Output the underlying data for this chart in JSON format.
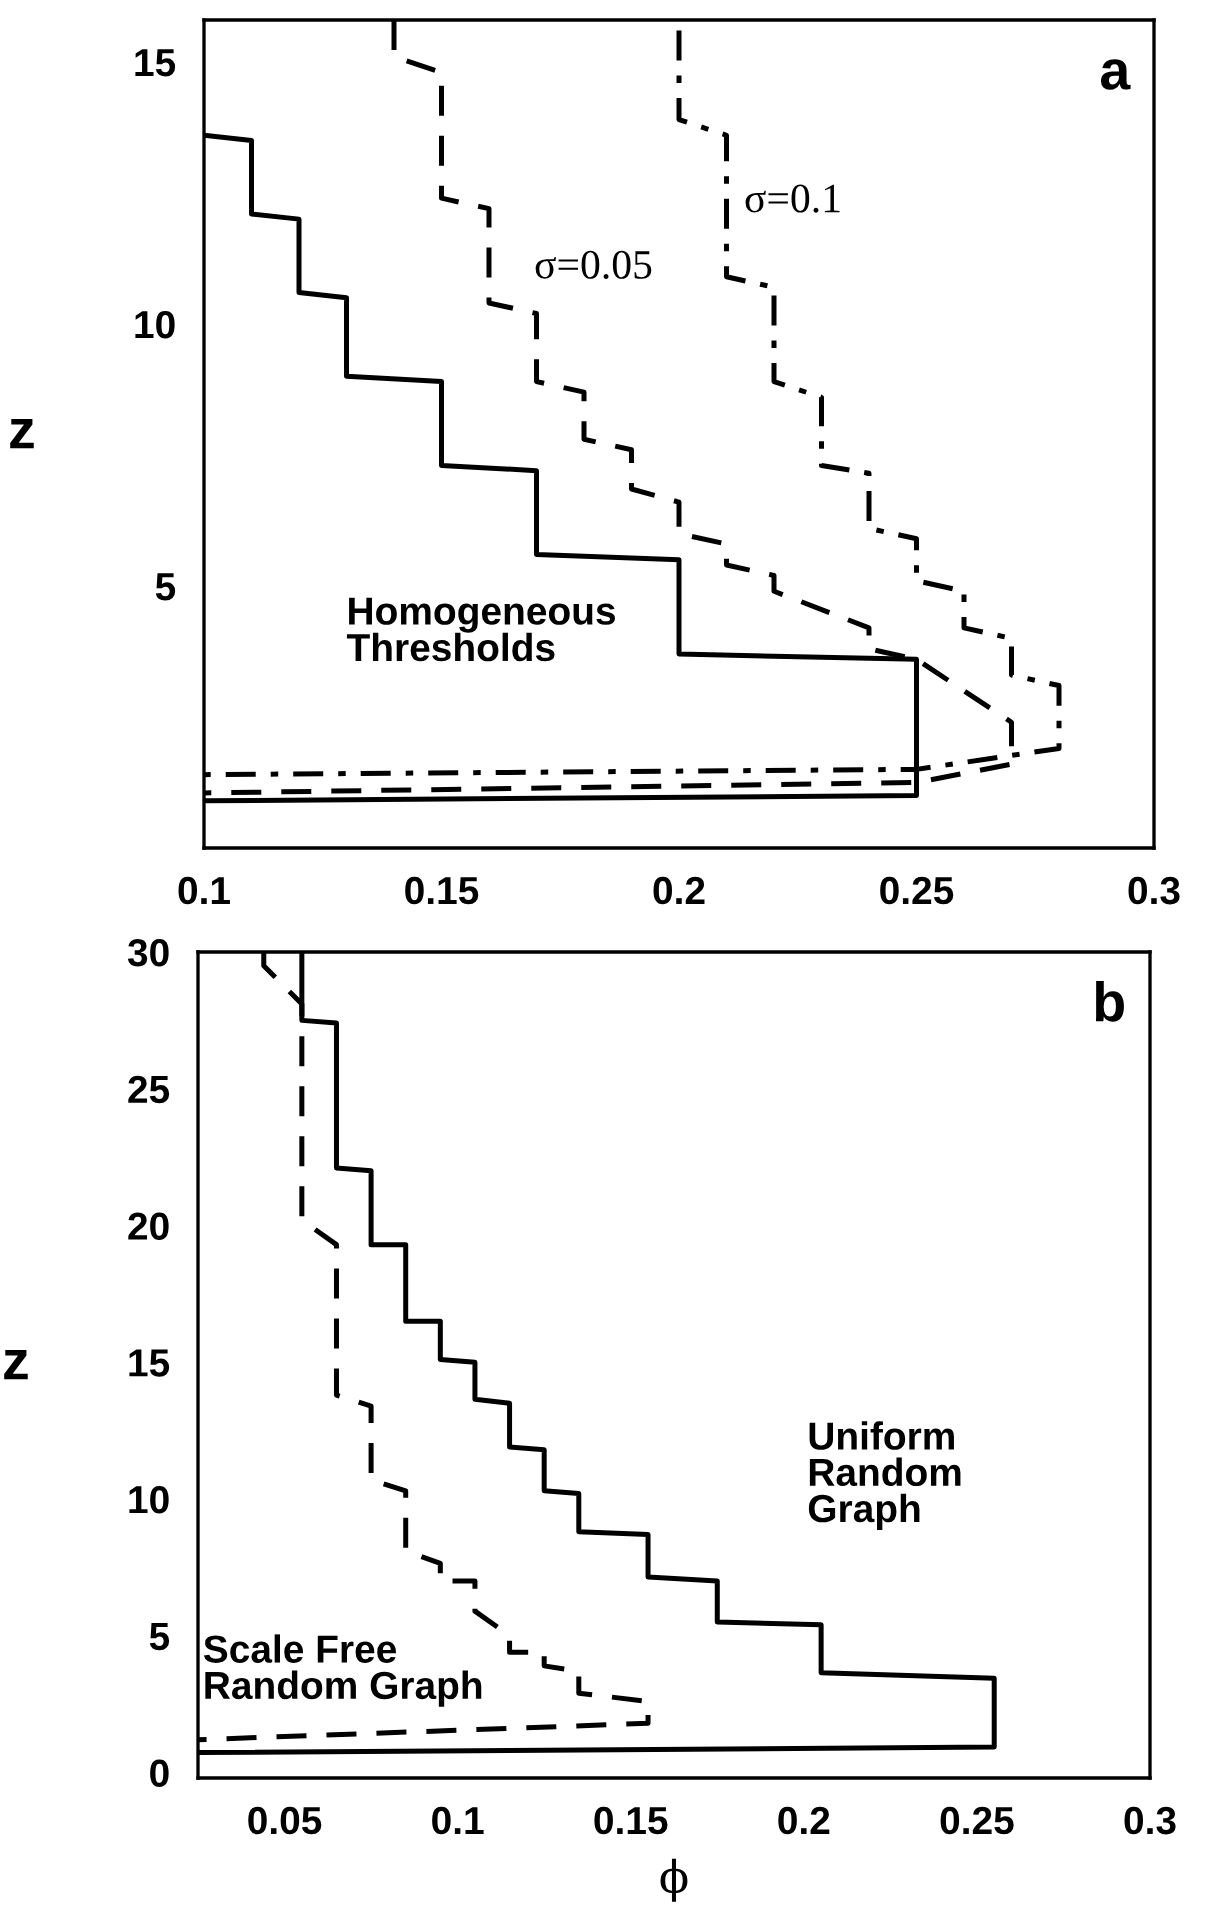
{
  "chart_data": [
    {
      "type": "line",
      "ylabel": "z",
      "annotations": [
        "a"
      ],
      "xlim": [
        0.1,
        0.3
      ],
      "ylim": [
        0,
        15.8
      ],
      "xticks": [
        0.1,
        0.15,
        0.2,
        0.25,
        0.3
      ],
      "yticks": [
        5,
        10,
        15
      ],
      "grid": false,
      "legend": false,
      "marker": "none",
      "series": [
        {
          "name": "Homogeneous Thresholds",
          "color": "#000000",
          "line_style": "solid",
          "x": [
            0.1,
            0.11,
            0.11,
            0.12,
            0.12,
            0.13,
            0.13,
            0.15,
            0.15,
            0.17,
            0.17,
            0.2,
            0.2,
            0.25,
            0.25,
            0.1
          ],
          "values": [
            13.6,
            13.5,
            12.1,
            12.0,
            10.6,
            10.5,
            9.0,
            8.9,
            7.3,
            7.2,
            5.6,
            5.5,
            3.7,
            3.6,
            1.0,
            0.9
          ]
        },
        {
          "name": "σ=0.05",
          "color": "#000000",
          "line_style": "dashed",
          "x": [
            0.14,
            0.14,
            0.15,
            0.15,
            0.16,
            0.16,
            0.17,
            0.17,
            0.18,
            0.18,
            0.19,
            0.19,
            0.2,
            0.2,
            0.21,
            0.21,
            0.22,
            0.22,
            0.24,
            0.24,
            0.25,
            0.27,
            0.27,
            0.25,
            0.1
          ],
          "values": [
            15.8,
            15.1,
            14.8,
            12.4,
            12.2,
            10.4,
            10.2,
            8.9,
            8.7,
            7.8,
            7.6,
            6.85,
            6.6,
            6.0,
            5.8,
            5.4,
            5.2,
            4.9,
            4.2,
            3.8,
            3.6,
            2.4,
            1.6,
            1.25,
            1.05
          ]
        },
        {
          "name": "σ=0.1",
          "color": "#000000",
          "line_style": "dashdot",
          "x": [
            0.2,
            0.2,
            0.21,
            0.21,
            0.22,
            0.22,
            0.23,
            0.23,
            0.24,
            0.24,
            0.25,
            0.25,
            0.26,
            0.26,
            0.27,
            0.27,
            0.28,
            0.28,
            0.25,
            0.1
          ],
          "values": [
            15.6,
            13.9,
            13.6,
            10.9,
            10.7,
            8.9,
            8.6,
            7.3,
            7.15,
            6.1,
            5.9,
            5.1,
            4.9,
            4.2,
            4.0,
            3.3,
            3.1,
            1.9,
            1.5,
            1.4
          ]
        }
      ]
    },
    {
      "type": "line",
      "xlabel": "ϕ",
      "ylabel": "z",
      "annotations": [
        "b"
      ],
      "xlim": [
        0.025,
        0.3
      ],
      "ylim": [
        -0.2,
        30
      ],
      "xticks": [
        0.05,
        0.1,
        0.15,
        0.2,
        0.25,
        0.3
      ],
      "yticks": [
        0,
        5,
        10,
        15,
        20,
        25,
        30
      ],
      "grid": false,
      "legend": false,
      "marker": "none",
      "series": [
        {
          "name": "Uniform Random Graph",
          "color": "#000000",
          "line_style": "solid",
          "x": [
            0.055,
            0.055,
            0.065,
            0.065,
            0.075,
            0.075,
            0.085,
            0.085,
            0.095,
            0.095,
            0.105,
            0.105,
            0.115,
            0.115,
            0.125,
            0.125,
            0.135,
            0.135,
            0.155,
            0.155,
            0.175,
            0.175,
            0.205,
            0.205,
            0.255,
            0.255,
            0.025
          ],
          "values": [
            30,
            27.5,
            27.4,
            22.1,
            22.0,
            19.3,
            19.3,
            16.5,
            16.5,
            15.1,
            15.0,
            13.65,
            13.5,
            11.9,
            11.8,
            10.3,
            10.2,
            8.8,
            8.7,
            7.15,
            7.0,
            5.5,
            5.4,
            3.65,
            3.45,
            0.93,
            0.73
          ]
        },
        {
          "name": "Scale Free Random Graph",
          "color": "#000000",
          "line_style": "dashed",
          "x": [
            0.044,
            0.044,
            0.055,
            0.055,
            0.065,
            0.065,
            0.075,
            0.075,
            0.085,
            0.085,
            0.095,
            0.095,
            0.105,
            0.105,
            0.115,
            0.115,
            0.125,
            0.125,
            0.135,
            0.135,
            0.155,
            0.155,
            0.025
          ],
          "values": [
            30,
            29.5,
            28.1,
            20.2,
            19.3,
            13.8,
            13.4,
            10.7,
            10.3,
            8.1,
            7.65,
            7.0,
            7.0,
            5.9,
            5.0,
            4.4,
            4.4,
            3.9,
            3.7,
            2.9,
            2.6,
            1.8,
            1.2
          ]
        }
      ]
    }
  ]
}
